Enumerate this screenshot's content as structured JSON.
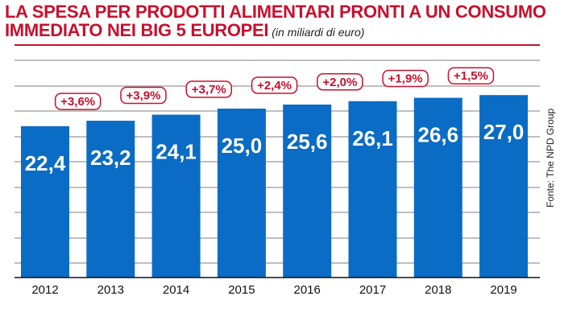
{
  "chart_data": {
    "type": "bar",
    "title_line1": "LA SPESA PER PRODOTTI ALIMENTARI PRONTI A UN CONSUMO",
    "title_line2": "IMMEDIATO NEI BIG 5 EUROPEI",
    "subtitle": "(in miliardi di euro)",
    "source": "Fonte: The NPD Group",
    "categories": [
      "2012",
      "2013",
      "2014",
      "2015",
      "2016",
      "2017",
      "2018",
      "2019"
    ],
    "values": [
      22.4,
      23.2,
      24.1,
      25.0,
      25.6,
      26.1,
      26.6,
      27.0
    ],
    "value_labels": [
      "22,4",
      "23,2",
      "24,1",
      "25,0",
      "25,6",
      "26,1",
      "26,6",
      "27,0"
    ],
    "growth_labels": [
      "",
      "+3,6%",
      "+3,9%",
      "+3,7%",
      "+2,4%",
      "+2,0%",
      "+1,9%",
      "+1,5%"
    ],
    "grid": true,
    "colors": {
      "bar": "#0a6cc4",
      "accent": "#c8102e",
      "grid": "#555555"
    }
  }
}
